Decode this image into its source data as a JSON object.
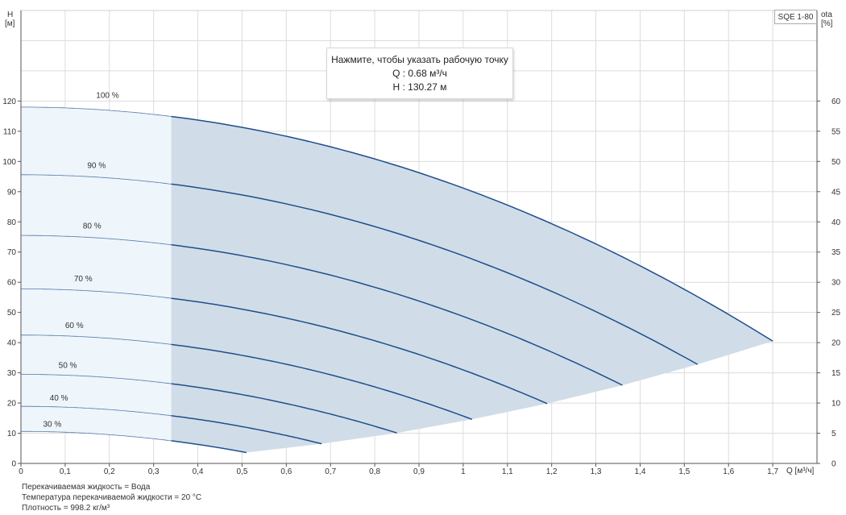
{
  "badge": "SQE 1-80",
  "tooltip": {
    "line1": "Нажмите, чтобы указать рабочую точку",
    "line2": "Q : 0.68 м³/ч",
    "line3": "H : 130.27 м"
  },
  "notes": [
    "Перекачиваемая жидкость = Вода",
    "Температура перекачиваемой жидкости = 20 °C",
    "Плотность = 998.2 кг/м³"
  ],
  "chart_data": {
    "type": "line",
    "xlabel": "Q [м³/ч]",
    "ylabel_left_line1": "H",
    "ylabel_left_line2": "[м]",
    "ylabel_right_line1": "ota",
    "ylabel_right_line2": "[%]",
    "xlim": [
      0,
      1.8
    ],
    "ylim_left": [
      0,
      150
    ],
    "ylim_right": [
      0,
      75
    ],
    "x_ticks": [
      "0",
      "0,1",
      "0,2",
      "0,3",
      "0,4",
      "0,5",
      "0,6",
      "0,7",
      "0,8",
      "0,9",
      "1",
      "1,1",
      "1,2",
      "1,3",
      "1,4",
      "1,5",
      "1,6",
      "1,7"
    ],
    "x_tick_values": [
      0,
      0.1,
      0.2,
      0.3,
      0.4,
      0.5,
      0.6,
      0.7,
      0.8,
      0.9,
      1.0,
      1.1,
      1.2,
      1.3,
      1.4,
      1.5,
      1.6,
      1.7
    ],
    "y_left_ticks": [
      0,
      10,
      20,
      30,
      40,
      50,
      60,
      70,
      80,
      90,
      100,
      110,
      120
    ],
    "y_right_ticks": [
      0,
      5,
      10,
      15,
      20,
      25,
      30,
      35,
      40,
      45,
      50,
      55,
      60
    ],
    "min_flow_boundary": 0.34,
    "grid": true,
    "colors": {
      "curve": "#1f4e8c",
      "region_dark": "#d0dde8",
      "region_light": "#eef5fb",
      "grid": "#dcdcdc",
      "axis": "#555555"
    },
    "series": [
      {
        "name": "100 %",
        "h0": 118,
        "qmax": 1.7,
        "hend": 40.5,
        "label_q": 0.17,
        "label_h": 121
      },
      {
        "name": "90 %",
        "h0": 95.6,
        "qmax": 1.53,
        "hend": 32.8,
        "label_q": 0.15,
        "label_h": 97.8
      },
      {
        "name": "80 %",
        "h0": 75.5,
        "qmax": 1.36,
        "hend": 25.9,
        "label_q": 0.14,
        "label_h": 77.8
      },
      {
        "name": "70 %",
        "h0": 57.8,
        "qmax": 1.19,
        "hend": 19.8,
        "label_q": 0.12,
        "label_h": 60.3
      },
      {
        "name": "60 %",
        "h0": 42.5,
        "qmax": 1.02,
        "hend": 14.6,
        "label_q": 0.1,
        "label_h": 44.8
      },
      {
        "name": "50 %",
        "h0": 29.5,
        "qmax": 0.85,
        "hend": 10.1,
        "label_q": 0.085,
        "label_h": 31.6
      },
      {
        "name": "40 %",
        "h0": 18.9,
        "qmax": 0.68,
        "hend": 6.5,
        "label_q": 0.065,
        "label_h": 20.8
      },
      {
        "name": "30 %",
        "h0": 10.6,
        "qmax": 0.51,
        "hend": 3.6,
        "label_q": 0.05,
        "label_h": 12.2
      }
    ]
  }
}
